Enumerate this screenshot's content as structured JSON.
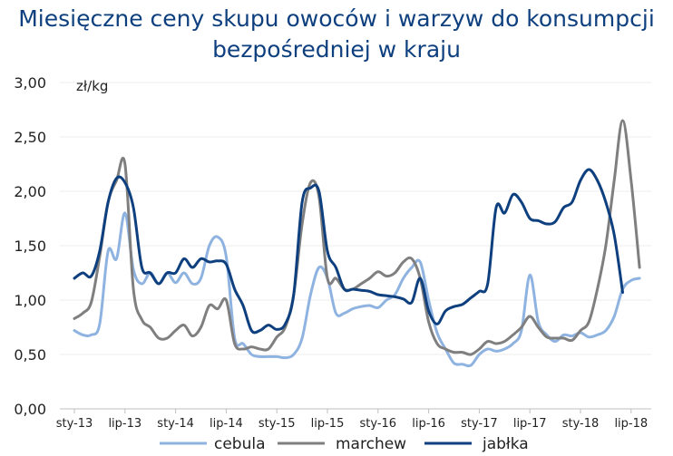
{
  "chart_data": {
    "type": "line",
    "title": "Miesięczne ceny skupu owoców i warzyw do konsumpcji bezpośredniej w kraju",
    "title_lines": [
      "Miesięczne ceny skupu owoców i warzyw do konsumpcji",
      "bezpośredniej w kraju"
    ],
    "unit_label": "zł/kg",
    "x_start": "2013-01",
    "x_tick_labels": [
      "sty-13",
      "lip-13",
      "sty-14",
      "lip-14",
      "sty-15",
      "lip-15",
      "sty-16",
      "lip-16",
      "sty-17",
      "lip-17",
      "sty-18",
      "lip-18"
    ],
    "y_tick_labels": [
      "0,00",
      "0,50",
      "1,00",
      "1,50",
      "2,00",
      "2,50",
      "3,00"
    ],
    "ylim": [
      0,
      3
    ],
    "legend_position": "bottom",
    "series": [
      {
        "name": "cebula",
        "color": "#8fb3e0",
        "values": [
          0.72,
          0.68,
          0.68,
          0.78,
          1.45,
          1.38,
          1.8,
          1.28,
          1.15,
          1.25,
          1.15,
          1.25,
          1.16,
          1.25,
          1.15,
          1.2,
          1.5,
          1.58,
          1.4,
          0.65,
          0.6,
          0.5,
          0.48,
          0.48,
          0.48,
          0.47,
          0.5,
          0.65,
          1.05,
          1.3,
          1.2,
          0.88,
          0.88,
          0.92,
          0.94,
          0.95,
          0.93,
          1.0,
          1.05,
          1.2,
          1.3,
          1.35,
          1.0,
          0.7,
          0.55,
          0.42,
          0.41,
          0.4,
          0.5,
          0.55,
          0.53,
          0.55,
          0.6,
          0.72,
          1.23,
          0.8,
          0.68,
          0.62,
          0.68,
          0.67,
          0.7,
          0.66,
          0.68,
          0.72,
          0.85,
          1.1,
          1.18,
          1.2
        ]
      },
      {
        "name": "marchew",
        "color": "#7f7f7f",
        "values": [
          0.83,
          0.88,
          0.98,
          1.4,
          1.9,
          2.1,
          2.25,
          1.1,
          0.82,
          0.75,
          0.65,
          0.65,
          0.72,
          0.77,
          0.67,
          0.75,
          0.95,
          0.92,
          1.0,
          0.6,
          0.55,
          0.57,
          0.55,
          0.55,
          0.66,
          0.75,
          1.05,
          1.7,
          2.08,
          1.95,
          1.2,
          1.2,
          1.1,
          1.1,
          1.15,
          1.2,
          1.26,
          1.22,
          1.25,
          1.35,
          1.38,
          1.2,
          0.8,
          0.6,
          0.55,
          0.52,
          0.52,
          0.5,
          0.55,
          0.62,
          0.6,
          0.62,
          0.68,
          0.75,
          0.85,
          0.75,
          0.66,
          0.65,
          0.65,
          0.63,
          0.72,
          0.8,
          1.1,
          1.5,
          2.1,
          2.65,
          2.1,
          1.3
        ]
      },
      {
        "name": "jabłka",
        "color": "#0e3f7e",
        "values": [
          1.2,
          1.25,
          1.22,
          1.45,
          1.9,
          2.12,
          2.08,
          1.85,
          1.3,
          1.25,
          1.15,
          1.25,
          1.25,
          1.38,
          1.3,
          1.38,
          1.35,
          1.36,
          1.33,
          1.1,
          0.95,
          0.72,
          0.72,
          0.77,
          0.73,
          0.78,
          1.05,
          1.9,
          2.03,
          2.0,
          1.45,
          1.3,
          1.1,
          1.1,
          1.09,
          1.08,
          1.05,
          1.04,
          1.03,
          1.01,
          0.98,
          1.2,
          0.9,
          0.78,
          0.9,
          0.94,
          0.96,
          1.02,
          1.08,
          1.15,
          1.85,
          1.8,
          1.97,
          1.9,
          1.75,
          1.73,
          1.7,
          1.72,
          1.85,
          1.9,
          2.1,
          2.2,
          2.1,
          1.9,
          1.6,
          1.07
        ]
      }
    ]
  }
}
